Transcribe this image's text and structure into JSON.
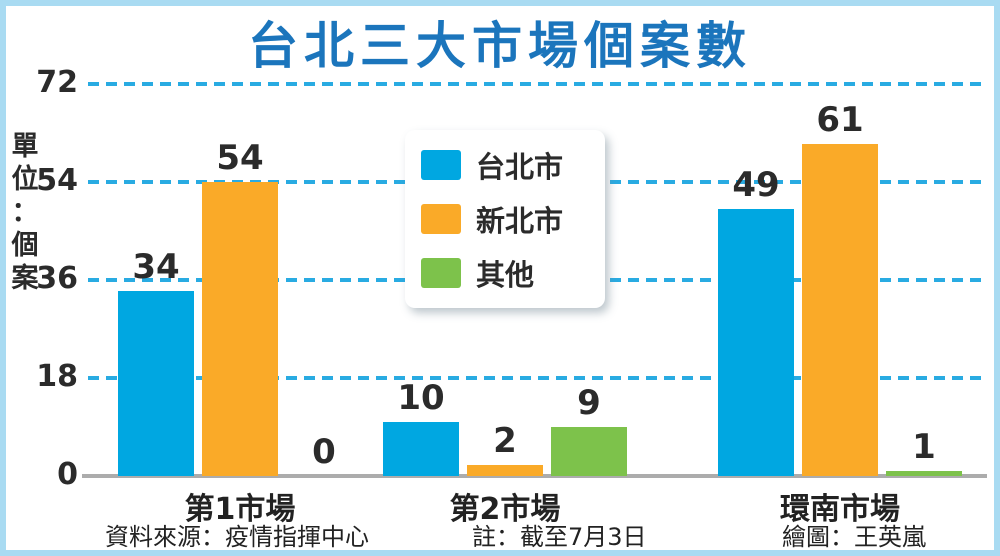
{
  "title": "台北三大市場個案數",
  "colors": {
    "title_blue": "#1B75BC",
    "frame_light_blue": "#A9DBF2",
    "gridline_blue": "#29ABE2",
    "baseline_gray": "#ACACAC",
    "text_dark": "#2B2B2B",
    "taipei_blue": "#00A7E1",
    "xinbei_orange": "#FAAA28",
    "other_green": "#7DC24B"
  },
  "chart_data": {
    "type": "bar",
    "title": "台北三大市場個案數",
    "ylabel": "單位：個案",
    "categories": [
      "第1市場",
      "第2市場",
      "環南市場"
    ],
    "series": [
      {
        "name": "台北市",
        "color": "#00A7E1",
        "values": [
          34,
          10,
          49
        ]
      },
      {
        "name": "新北市",
        "color": "#FAAA28",
        "values": [
          54,
          2,
          61
        ]
      },
      {
        "name": "其他",
        "color": "#7DC24B",
        "values": [
          0,
          9,
          1
        ]
      }
    ],
    "ylim": [
      0,
      72
    ],
    "yticks": [
      0,
      18,
      36,
      54,
      72
    ],
    "grid": "horizontal-dashed",
    "legend_position": "top-center",
    "show_value_labels": true
  },
  "footer": {
    "source": "資料來源：疫情指揮中心",
    "note": "註：截至7月3日",
    "credit": "繪圖：王英嵐"
  }
}
